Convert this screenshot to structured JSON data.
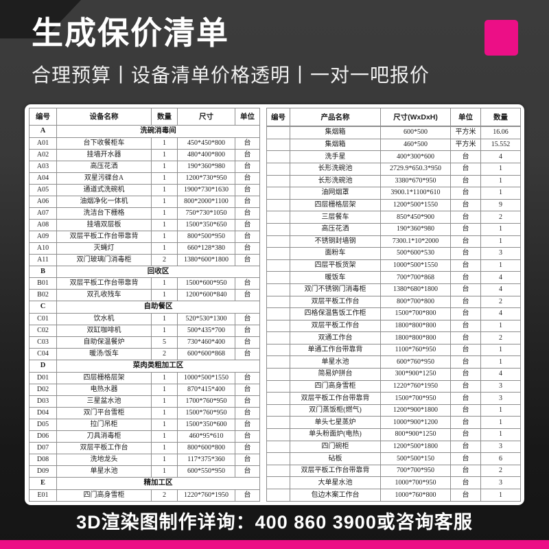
{
  "header": {
    "title": "生成保价清单",
    "subtitle": "合理预算丨设备清单价格透明丨一对一吧报价"
  },
  "colors": {
    "accent_magenta": "#ec0f86",
    "background_top": "#3c3c3c",
    "background_bottom": "#151515",
    "card_background": "#ffffff",
    "table_border": "#8c8c8c"
  },
  "tables": {
    "left": {
      "columns": [
        "编号",
        "设备名称",
        "数量",
        "尺寸",
        "单位"
      ],
      "cell_keys": [
        "code",
        "name",
        "qty",
        "size",
        "unit"
      ],
      "rows": [
        {
          "section": true,
          "code": "A",
          "name": "洗碗消毒间"
        },
        {
          "code": "A01",
          "name": "台下收餐柜车",
          "qty": "1",
          "size": "450*450*800",
          "unit": "台"
        },
        {
          "code": "A02",
          "name": "挂墙开水器",
          "qty": "1",
          "size": "480*400*800",
          "unit": "台"
        },
        {
          "code": "A03",
          "name": "高压花洒",
          "qty": "1",
          "size": "190*360*980",
          "unit": "台"
        },
        {
          "code": "A04",
          "name": "双星污碟台A",
          "qty": "1",
          "size": "1200*730*950",
          "unit": "台"
        },
        {
          "code": "A05",
          "name": "通道式洗碗机",
          "qty": "1",
          "size": "1900*730*1630",
          "unit": "台"
        },
        {
          "code": "A06",
          "name": "油烟净化一体机",
          "qty": "1",
          "size": "800*2000*1100",
          "unit": "台"
        },
        {
          "code": "A07",
          "name": "洗洁台下栅格",
          "qty": "1",
          "size": "750*730*1050",
          "unit": "台"
        },
        {
          "code": "A08",
          "name": "挂墙双层板",
          "qty": "1",
          "size": "1500*350*650",
          "unit": "台"
        },
        {
          "code": "A09",
          "name": "双层平板工作台带靠背",
          "qty": "1",
          "size": "800*500*950",
          "unit": "台"
        },
        {
          "code": "A10",
          "name": "灭蝇灯",
          "qty": "1",
          "size": "660*128*380",
          "unit": "台"
        },
        {
          "code": "A11",
          "name": "双门玻璃门消毒柜",
          "qty": "2",
          "size": "1380*600*1800",
          "unit": "台"
        },
        {
          "section": true,
          "code": "B",
          "name": "回收区"
        },
        {
          "code": "B01",
          "name": "双层平板工作台带靠背",
          "qty": "1",
          "size": "1500*600*950",
          "unit": "台"
        },
        {
          "code": "B02",
          "name": "双孔收残车",
          "qty": "1",
          "size": "1200*600*840",
          "unit": "台"
        },
        {
          "section": true,
          "code": "C",
          "name": "自助餐区"
        },
        {
          "code": "C01",
          "name": "饮水机",
          "qty": "1",
          "size": "520*530*1300",
          "unit": "台"
        },
        {
          "code": "C02",
          "name": "双缸咖啡机",
          "qty": "1",
          "size": "500*435*700",
          "unit": "台"
        },
        {
          "code": "C03",
          "name": "自助保温餐炉",
          "qty": "5",
          "size": "730*460*400",
          "unit": "台"
        },
        {
          "code": "C04",
          "name": "暖汤/饭车",
          "qty": "2",
          "size": "600*600*868",
          "unit": "台"
        },
        {
          "section": true,
          "code": "D",
          "name": "菜肉类粗加工区"
        },
        {
          "code": "D01",
          "name": "四层栅格层架",
          "qty": "1",
          "size": "1000*500*1550",
          "unit": "台"
        },
        {
          "code": "D02",
          "name": "电热水器",
          "qty": "1",
          "size": "870*415*400",
          "unit": "台"
        },
        {
          "code": "D03",
          "name": "三星盆水池",
          "qty": "1",
          "size": "1700*760*950",
          "unit": "台"
        },
        {
          "code": "D04",
          "name": "双门平台雪柜",
          "qty": "1",
          "size": "1500*760*950",
          "unit": "台"
        },
        {
          "code": "D05",
          "name": "拉门吊柜",
          "qty": "1",
          "size": "1500*350*600",
          "unit": "台"
        },
        {
          "code": "D06",
          "name": "刀具消毒柜",
          "qty": "1",
          "size": "460*95*610",
          "unit": "台"
        },
        {
          "code": "D07",
          "name": "双层平板工作台",
          "qty": "1",
          "size": "800*600*800",
          "unit": "台"
        },
        {
          "code": "D08",
          "name": "洗地龙头",
          "qty": "1",
          "size": "117*375*360",
          "unit": "台"
        },
        {
          "code": "D09",
          "name": "单星水池",
          "qty": "1",
          "size": "600*550*950",
          "unit": "台"
        },
        {
          "section": true,
          "code": "E",
          "name": "精加工区"
        },
        {
          "code": "E01",
          "name": "四门高身雪柜",
          "qty": "2",
          "size": "1220*760*1950",
          "unit": "台"
        }
      ]
    },
    "right": {
      "columns": [
        "编号",
        "产品名称",
        "尺寸(WxDxH)",
        "单位",
        "数量"
      ],
      "cell_keys": [
        "code",
        "name",
        "size",
        "unit",
        "qty"
      ],
      "rows": [
        {
          "code": "",
          "name": "",
          "size": "",
          "unit": "",
          "qty": ""
        },
        {
          "code": "",
          "name": "集烟箱",
          "size": "600*500",
          "unit": "平方米",
          "qty": "16.06"
        },
        {
          "code": "",
          "name": "集烟箱",
          "size": "460*500",
          "unit": "平方米",
          "qty": "15.552"
        },
        {
          "code": "",
          "name": "洗手星",
          "size": "400*300*600",
          "unit": "台",
          "qty": "4"
        },
        {
          "code": "",
          "name": "长形洗碗池",
          "size": "2729.9*650.3*950",
          "unit": "台",
          "qty": "1"
        },
        {
          "code": "",
          "name": "长形洗碗池",
          "size": "3380*670*950",
          "unit": "台",
          "qty": "1"
        },
        {
          "code": "",
          "name": "油网烟罩",
          "size": "3900.1*1100*610",
          "unit": "台",
          "qty": "1"
        },
        {
          "code": "",
          "name": "四层栅格层架",
          "size": "1200*500*1550",
          "unit": "台",
          "qty": "9"
        },
        {
          "code": "",
          "name": "三层餐车",
          "size": "850*450*900",
          "unit": "台",
          "qty": "2"
        },
        {
          "code": "",
          "name": "高压花洒",
          "size": "190*360*980",
          "unit": "台",
          "qty": "1"
        },
        {
          "code": "",
          "name": "不锈钢封墙钢",
          "size": "7300.1*10*2000",
          "unit": "台",
          "qty": "1"
        },
        {
          "code": "",
          "name": "面粉车",
          "size": "500*600*530",
          "unit": "台",
          "qty": "3"
        },
        {
          "code": "",
          "name": "四层平板货架",
          "size": "1000*500*1550",
          "unit": "台",
          "qty": "1"
        },
        {
          "code": "",
          "name": "暖饭车",
          "size": "700*700*868",
          "unit": "台",
          "qty": "4"
        },
        {
          "code": "",
          "name": "双门不锈钢门消毒柜",
          "size": "1380*680*1800",
          "unit": "台",
          "qty": "4"
        },
        {
          "code": "",
          "name": "双层平板工作台",
          "size": "800*700*800",
          "unit": "台",
          "qty": "2"
        },
        {
          "code": "",
          "name": "四格保温售饭工作柜",
          "size": "1500*700*800",
          "unit": "台",
          "qty": "4"
        },
        {
          "code": "",
          "name": "双层平板工作台",
          "size": "1800*800*800",
          "unit": "台",
          "qty": "1"
        },
        {
          "code": "",
          "name": "双通工作台",
          "size": "1800*800*800",
          "unit": "台",
          "qty": "2"
        },
        {
          "code": "",
          "name": "单通工作台带靠背",
          "size": "1100*760*950",
          "unit": "台",
          "qty": "1"
        },
        {
          "code": "",
          "name": "单星水池",
          "size": "600*760*950",
          "unit": "台",
          "qty": "1"
        },
        {
          "code": "",
          "name": "简易炉拼台",
          "size": "300*900*1250",
          "unit": "台",
          "qty": "4"
        },
        {
          "code": "",
          "name": "四门高身雪柜",
          "size": "1220*760*1950",
          "unit": "台",
          "qty": "3"
        },
        {
          "code": "",
          "name": "双层平板工作台带靠背",
          "size": "1500*700*950",
          "unit": "台",
          "qty": "3"
        },
        {
          "code": "",
          "name": "双门蒸饭柜(燃气)",
          "size": "1200*900*1800",
          "unit": "台",
          "qty": "1"
        },
        {
          "code": "",
          "name": "单头七星蒸炉",
          "size": "1000*900*1200",
          "unit": "台",
          "qty": "1"
        },
        {
          "code": "",
          "name": "单头粉面炉(电热)",
          "size": "800*900*1250",
          "unit": "台",
          "qty": "1"
        },
        {
          "code": "",
          "name": "四门碗柜",
          "size": "1200*500*1800",
          "unit": "台",
          "qty": "3"
        },
        {
          "code": "",
          "name": "砧板",
          "size": "500*500*150",
          "unit": "台",
          "qty": "6"
        },
        {
          "code": "",
          "name": "双层平板工作台带靠背",
          "size": "700*700*950",
          "unit": "台",
          "qty": "2"
        },
        {
          "code": "",
          "name": "大单星水池",
          "size": "1000*700*950",
          "unit": "台",
          "qty": "3"
        },
        {
          "code": "",
          "name": "包边木案工作台",
          "size": "1000*760*800",
          "unit": "台",
          "qty": "1"
        }
      ]
    }
  },
  "footer": {
    "text": "3D渲染图制作详询：400 860 3900或咨询客服"
  }
}
